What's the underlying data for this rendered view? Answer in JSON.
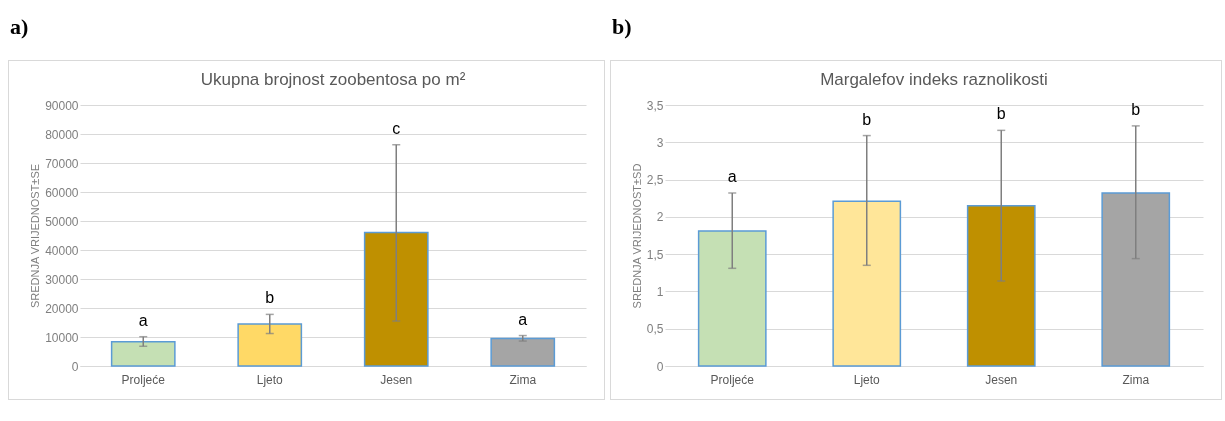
{
  "chart_data": [
    {
      "type": "bar",
      "title": "Ukupna brojnost zoobentosa po m²",
      "ylabel": "SREDNJA VRIJEDNOST±SE",
      "categories": [
        "Proljeće",
        "Ljeto",
        "Jesen",
        "Zima"
      ],
      "values": [
        8400,
        14500,
        46000,
        9500
      ],
      "colors": [
        "#c5e0b4",
        "#ffd966",
        "#bf9000",
        "#a5a5a5"
      ],
      "errors": [
        [
          6800,
          10100
        ],
        [
          11200,
          17800
        ],
        [
          15500,
          76300
        ],
        [
          8600,
          10500
        ]
      ],
      "ylim": [
        0,
        90000
      ],
      "yticks": [
        0,
        10000,
        20000,
        30000,
        40000,
        50000,
        60000,
        70000,
        80000,
        90000
      ],
      "grid": "y",
      "annotations": [
        "a)",
        "a",
        "b",
        "c",
        "a"
      ]
    },
    {
      "type": "bar",
      "title": "Margalefov indeks raznolikosti",
      "ylabel": "SREDNJA VRIJEDNOST±SD",
      "categories": [
        "Proljeće",
        "Ljeto",
        "Jesen",
        "Zima"
      ],
      "values": [
        1.81,
        2.21,
        2.15,
        2.32
      ],
      "colors": [
        "#c5e0b4",
        "#ffe699",
        "#bf9000",
        "#a5a5a5"
      ],
      "errors": [
        [
          1.31,
          2.32
        ],
        [
          1.35,
          3.09
        ],
        [
          1.14,
          3.16
        ],
        [
          1.44,
          3.22
        ]
      ],
      "ylim": [
        0,
        3.5
      ],
      "yticks": [
        0,
        {
          "value": 0.5,
          "label": "0,5"
        },
        1,
        {
          "value": 1.5,
          "label": "1,5"
        },
        2,
        {
          "value": 2.5,
          "label": "2,5"
        },
        3,
        {
          "value": 3.5,
          "label": "3,5"
        }
      ],
      "grid": "y",
      "annotations": [
        "b)",
        "a",
        "b",
        "b",
        "b"
      ]
    }
  ]
}
